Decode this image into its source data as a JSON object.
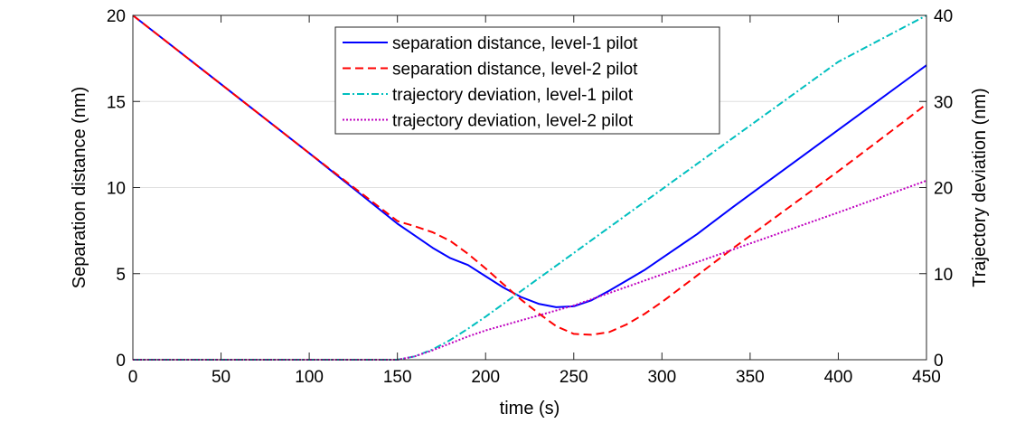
{
  "chart_data": {
    "type": "line",
    "title": "",
    "xlabel": "time (s)",
    "ylabel": "Separation distance (nm)",
    "y2label": "Trajectory deviation (nm)",
    "xlim": [
      0,
      450
    ],
    "ylim": [
      0,
      20
    ],
    "y2lim": [
      0,
      40
    ],
    "xticks": [
      0,
      50,
      100,
      150,
      200,
      250,
      300,
      350,
      400,
      450
    ],
    "yticks": [
      0,
      5,
      10,
      15,
      20
    ],
    "y2ticks": [
      0,
      10,
      20,
      30,
      40
    ],
    "grid": "horizontal",
    "legend_position": "top-center",
    "series": [
      {
        "name": "separation distance, level-1 pilot",
        "axis": "left",
        "color": "#0000ff",
        "dash": "solid",
        "x": [
          0,
          50,
          100,
          150,
          160,
          170,
          180,
          190,
          200,
          210,
          220,
          230,
          240,
          250,
          260,
          270,
          280,
          290,
          300,
          320,
          340,
          360,
          380,
          400,
          420,
          440,
          450
        ],
        "y": [
          20,
          16,
          12,
          7.9,
          7.2,
          6.5,
          5.9,
          5.5,
          4.85,
          4.2,
          3.65,
          3.25,
          3.05,
          3.1,
          3.45,
          4.0,
          4.6,
          5.2,
          5.9,
          7.3,
          8.85,
          10.35,
          11.85,
          13.35,
          14.85,
          16.35,
          17.1
        ]
      },
      {
        "name": "separation distance, level-2 pilot",
        "axis": "left",
        "color": "#ff0000",
        "dash": "dashed",
        "x": [
          0,
          50,
          100,
          150,
          160,
          170,
          180,
          190,
          200,
          210,
          220,
          230,
          240,
          250,
          260,
          270,
          280,
          290,
          300,
          320,
          340,
          360,
          380,
          400,
          420,
          440,
          450
        ],
        "y": [
          20,
          16,
          12,
          8.05,
          7.75,
          7.4,
          6.9,
          6.15,
          5.3,
          4.4,
          3.5,
          2.7,
          1.95,
          1.5,
          1.45,
          1.6,
          2.05,
          2.65,
          3.35,
          4.9,
          6.45,
          7.95,
          9.45,
          10.95,
          12.5,
          14.05,
          14.85
        ]
      },
      {
        "name": "trajectory deviation, level-1 pilot",
        "axis": "right",
        "color": "#00bfbf",
        "dash": "dashdot",
        "x": [
          0,
          100,
          150,
          160,
          170,
          180,
          190,
          200,
          250,
          300,
          350,
          400,
          450
        ],
        "y": [
          0,
          0,
          0,
          0.4,
          1.2,
          2.3,
          3.6,
          5.0,
          12.4,
          19.8,
          27.2,
          34.6,
          40.0
        ]
      },
      {
        "name": "trajectory deviation, level-2 pilot",
        "axis": "right",
        "color": "#bf00bf",
        "dash": "dotted",
        "x": [
          0,
          100,
          150,
          160,
          170,
          180,
          190,
          200,
          250,
          300,
          350,
          400,
          450
        ],
        "y": [
          0,
          0,
          0,
          0.4,
          1.1,
          1.9,
          2.7,
          3.4,
          6.3,
          9.9,
          13.5,
          17.1,
          20.8
        ]
      }
    ]
  }
}
